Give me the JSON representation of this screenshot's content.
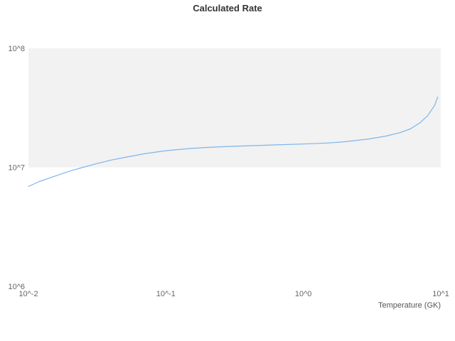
{
  "chart_data": {
    "type": "line",
    "title": "Calculated Rate",
    "xlabel": "Temperature (GK)",
    "ylabel": "",
    "xscale": "log",
    "yscale": "log",
    "xlim": [
      0.01,
      10
    ],
    "ylim": [
      1000000,
      100000000
    ],
    "x_ticks": [
      0.01,
      0.1,
      1,
      10
    ],
    "x_tick_labels": [
      "10^-2",
      "10^-1",
      "10^0",
      "10^1"
    ],
    "y_ticks": [
      1000000,
      10000000,
      100000000
    ],
    "y_tick_labels": [
      "10^6",
      "10^7",
      "10^8"
    ],
    "grid": false,
    "legend": false,
    "band": {
      "axis": "y",
      "from": 10000000,
      "to": 100000000,
      "color": "#f2f2f2"
    },
    "line_color": "#7cb5ec",
    "series": [
      {
        "name": "Calculated Rate",
        "x": [
          0.01,
          0.012,
          0.015,
          0.02,
          0.025,
          0.03,
          0.04,
          0.05,
          0.07,
          0.1,
          0.15,
          0.2,
          0.3,
          0.5,
          0.7,
          1.0,
          1.5,
          2.0,
          3.0,
          4.0,
          5.0,
          6.0,
          7.0,
          8.0,
          9.0,
          9.5
        ],
        "y": [
          6900000,
          7600000,
          8300000,
          9300000,
          10000000,
          10600000,
          11500000,
          12100000,
          13000000,
          13800000,
          14400000,
          14700000,
          15000000,
          15300000,
          15500000,
          15700000,
          16000000,
          16400000,
          17300000,
          18300000,
          19500000,
          21000000,
          23500000,
          27000000,
          33000000,
          39000000
        ]
      }
    ]
  },
  "layout_colors": {
    "background": "#ffffff",
    "title_color": "#333333",
    "tick_color": "#666666",
    "axis_label_color": "#555555"
  }
}
